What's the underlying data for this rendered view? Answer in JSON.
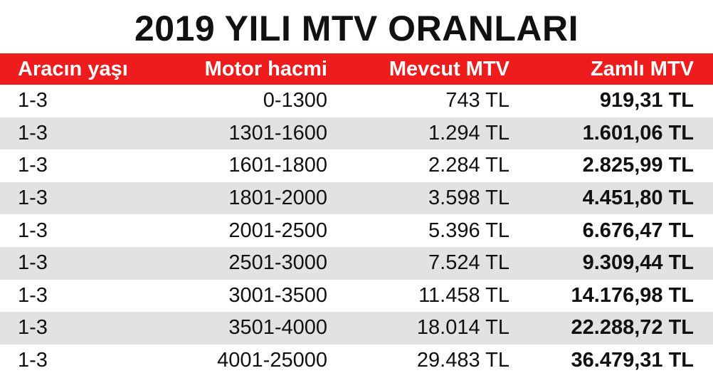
{
  "title": "2019 YILI MTV ORANLARI",
  "table": {
    "header": [
      "Aracın yaşı",
      "Motor hacmi",
      "Mevcut MTV",
      "Zamlı MTV"
    ],
    "rows": [
      [
        "1-3",
        "0-1300",
        "743 TL",
        "919,31 TL"
      ],
      [
        "1-3",
        "1301-1600",
        "1.294 TL",
        "1.601,06 TL"
      ],
      [
        "1-3",
        "1601-1800",
        "2.284 TL",
        "2.825,99 TL"
      ],
      [
        "1-3",
        "1801-2000",
        "3.598 TL",
        "4.451,80 TL"
      ],
      [
        "1-3",
        "2001-2500",
        "5.396 TL",
        "6.676,47 TL"
      ],
      [
        "1-3",
        "2501-3000",
        "7.524 TL",
        "9.309,44 TL"
      ],
      [
        "1-3",
        "3001-3500",
        "11.458 TL",
        "14.176,98 TL"
      ],
      [
        "1-3",
        "3501-4000",
        "18.014 TL",
        "22.288,72 TL"
      ],
      [
        "1-3",
        "4001-25000",
        "29.483 TL",
        "36.479,31 TL"
      ]
    ]
  }
}
